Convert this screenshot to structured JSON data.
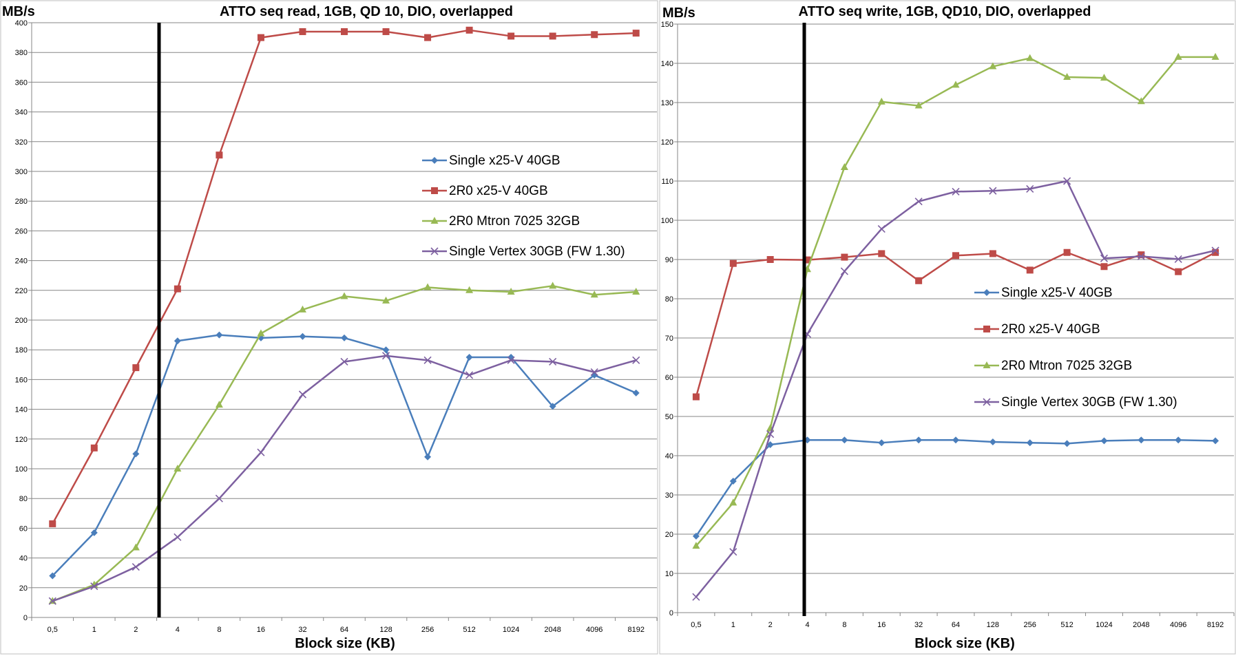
{
  "chart_data": [
    {
      "type": "line",
      "title": "ATTO seq read, 1GB, QD 10, DIO, overlapped",
      "ylabel": "MB/s",
      "xlabel": "Block size (KB)",
      "categories": [
        "0,5",
        "1",
        "2",
        "4",
        "8",
        "16",
        "32",
        "64",
        "128",
        "256",
        "512",
        "1024",
        "2048",
        "4096",
        "8192"
      ],
      "ylim": [
        0,
        400
      ],
      "ytick_step": 20,
      "grid": "horizontal",
      "legend_placement": "right-middle",
      "series": [
        {
          "name": "Single x25-V 40GB",
          "color": "#4a7ebb",
          "marker": "diamond",
          "values": [
            28,
            57,
            110,
            186,
            190,
            188,
            189,
            188,
            180,
            108,
            175,
            175,
            142,
            163,
            151
          ]
        },
        {
          "name": "2R0 x25-V 40GB",
          "color": "#be4b48",
          "marker": "square",
          "values": [
            63,
            114,
            168,
            221,
            311,
            390,
            394,
            394,
            394,
            390,
            395,
            391,
            391,
            392,
            393
          ]
        },
        {
          "name": "2R0 Mtron 7025 32GB",
          "color": "#98b954",
          "marker": "triangle",
          "values": [
            11,
            22,
            47,
            100,
            143,
            191,
            207,
            216,
            213,
            222,
            220,
            219,
            223,
            217,
            219
          ]
        },
        {
          "name": "Single Vertex 30GB (FW 1.30)",
          "color": "#7d60a0",
          "marker": "x",
          "values": [
            11,
            21,
            34,
            54,
            80,
            111,
            150,
            172,
            176,
            173,
            163,
            173,
            172,
            165,
            173
          ]
        }
      ]
    },
    {
      "type": "line",
      "title": "ATTO seq write, 1GB, QD10, DIO, overlapped",
      "ylabel": "MB/s",
      "xlabel": "Block size (KB)",
      "categories": [
        "0,5",
        "1",
        "2",
        "4",
        "8",
        "16",
        "32",
        "64",
        "128",
        "256",
        "512",
        "1024",
        "2048",
        "4096",
        "8192"
      ],
      "ylim": [
        0,
        150
      ],
      "ytick_step": 10,
      "grid": "horizontal",
      "legend_placement": "right-middle",
      "series": [
        {
          "name": "Single x25-V 40GB",
          "color": "#4a7ebb",
          "marker": "diamond",
          "values": [
            19.5,
            33.5,
            42.8,
            44,
            44,
            43.3,
            44,
            44,
            43.5,
            43.3,
            43.1,
            43.8,
            44,
            44,
            43.8
          ]
        },
        {
          "name": "2R0 x25-V 40GB",
          "color": "#be4b48",
          "marker": "square",
          "values": [
            55,
            89,
            90,
            89.9,
            90.6,
            91.5,
            84.6,
            91,
            91.5,
            87.3,
            91.8,
            88.2,
            91.2,
            86.9,
            91.8
          ]
        },
        {
          "name": "2R0 Mtron 7025 32GB",
          "color": "#98b954",
          "marker": "triangle",
          "values": [
            17,
            28,
            47,
            87.5,
            113.5,
            130.2,
            129.2,
            134.5,
            139.2,
            141.3,
            136.5,
            136.3,
            130.3,
            141.6,
            141.6
          ]
        },
        {
          "name": "Single Vertex 30GB (FW 1.30)",
          "color": "#7d60a0",
          "marker": "x",
          "values": [
            4,
            15.5,
            45.5,
            71,
            87,
            97.8,
            104.8,
            107.3,
            107.5,
            108,
            110,
            90.3,
            90.8,
            90.1,
            92.3
          ]
        }
      ]
    }
  ]
}
